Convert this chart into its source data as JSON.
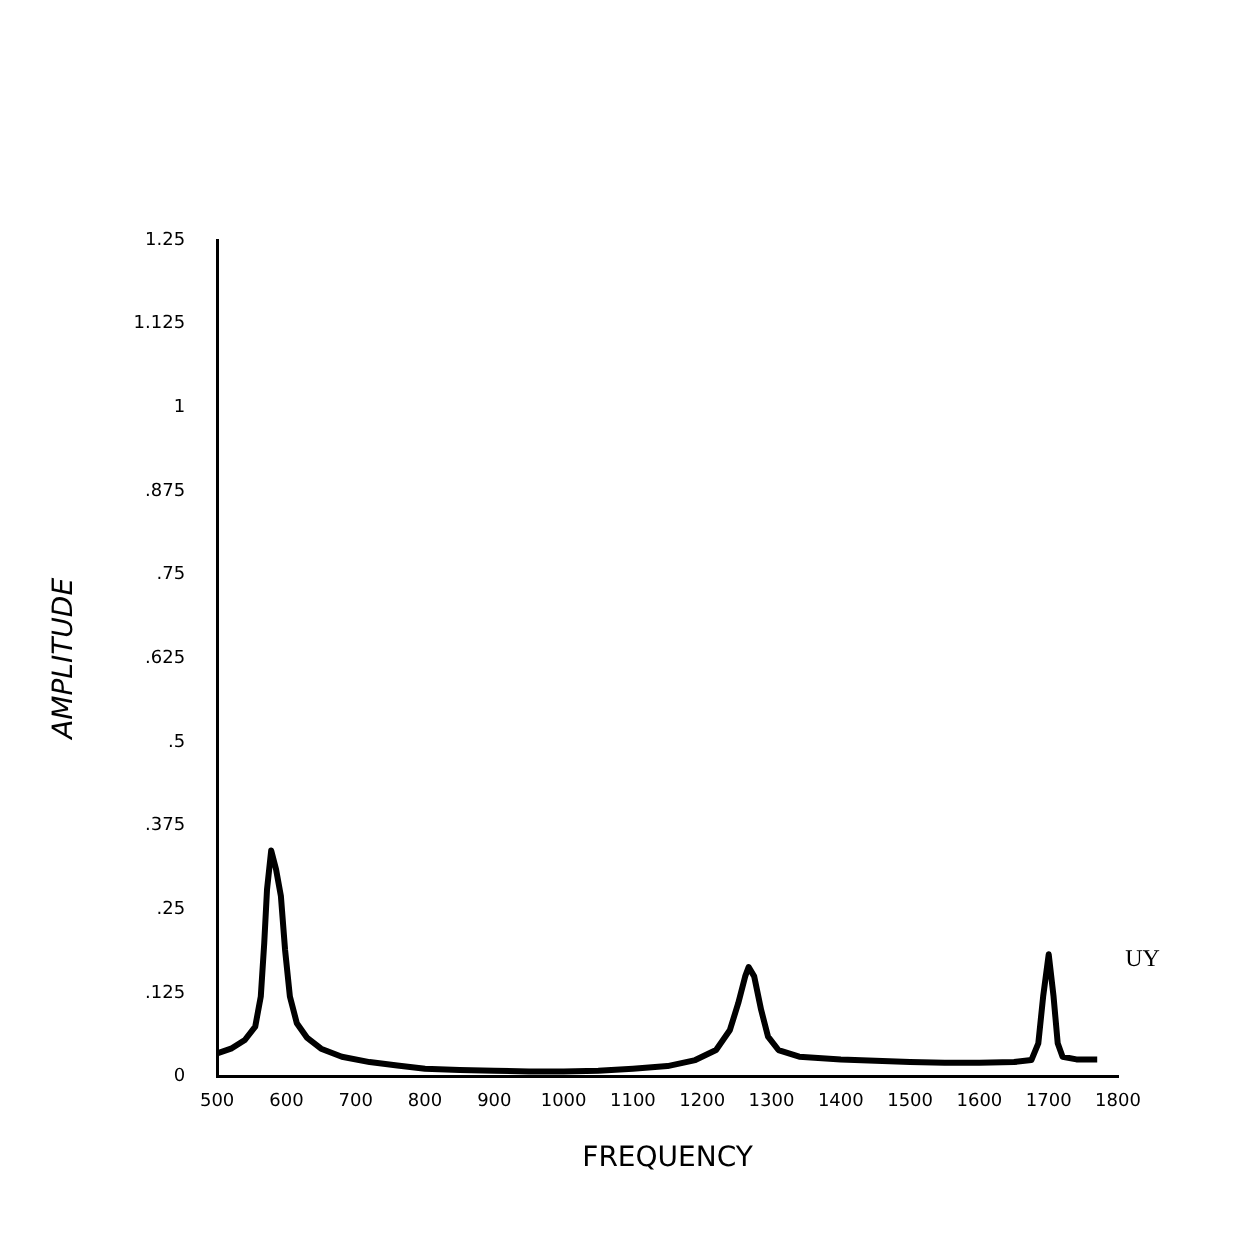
{
  "chart_data": {
    "type": "line",
    "xlabel": "FREQUENCY",
    "ylabel": "AMPLITUDE",
    "xlim": [
      500,
      1800
    ],
    "xticks": [
      500,
      600,
      700,
      800,
      900,
      1000,
      1100,
      1200,
      1300,
      1400,
      1500,
      1600,
      1700,
      1800
    ],
    "ylim": [
      0,
      1.25
    ],
    "yticks": [
      {
        "value": 0,
        "label": "0"
      },
      {
        "value": 0.125,
        "label": ".125"
      },
      {
        "value": 0.25,
        "label": ".25"
      },
      {
        "value": 0.375,
        "label": ".375"
      },
      {
        "value": 0.5,
        "label": ".5"
      },
      {
        "value": 0.625,
        "label": ".625"
      },
      {
        "value": 0.75,
        "label": ".75"
      },
      {
        "value": 0.875,
        "label": ".875"
      },
      {
        "value": 1,
        "label": "1"
      },
      {
        "value": 1.125,
        "label": "1.125"
      },
      {
        "value": 1.25,
        "label": "1.25"
      }
    ],
    "grid": false,
    "marker": "none",
    "line_style": "solid",
    "series": [
      {
        "name": "UY",
        "color": "#000000",
        "x": [
          500,
          520,
          540,
          555,
          563,
          568,
          572,
          578,
          585,
          592,
          598,
          605,
          615,
          630,
          650,
          680,
          720,
          760,
          800,
          850,
          900,
          950,
          1000,
          1050,
          1100,
          1150,
          1190,
          1220,
          1240,
          1252,
          1262,
          1267,
          1275,
          1285,
          1295,
          1310,
          1340,
          1400,
          1450,
          1500,
          1550,
          1600,
          1650,
          1675,
          1685,
          1692,
          1700,
          1707,
          1713,
          1720,
          1740,
          1770
        ],
        "values": [
          0.035,
          0.042,
          0.055,
          0.075,
          0.12,
          0.2,
          0.28,
          0.338,
          0.31,
          0.27,
          0.19,
          0.12,
          0.08,
          0.058,
          0.042,
          0.03,
          0.022,
          0.017,
          0.012,
          0.01,
          0.009,
          0.008,
          0.008,
          0.009,
          0.012,
          0.016,
          0.025,
          0.04,
          0.07,
          0.11,
          0.15,
          0.164,
          0.15,
          0.1,
          0.06,
          0.04,
          0.03,
          0.026,
          0.024,
          0.022,
          0.021,
          0.021,
          0.022,
          0.025,
          0.05,
          0.12,
          0.183,
          0.12,
          0.05,
          0.03,
          0.026,
          0.026
        ]
      }
    ]
  }
}
